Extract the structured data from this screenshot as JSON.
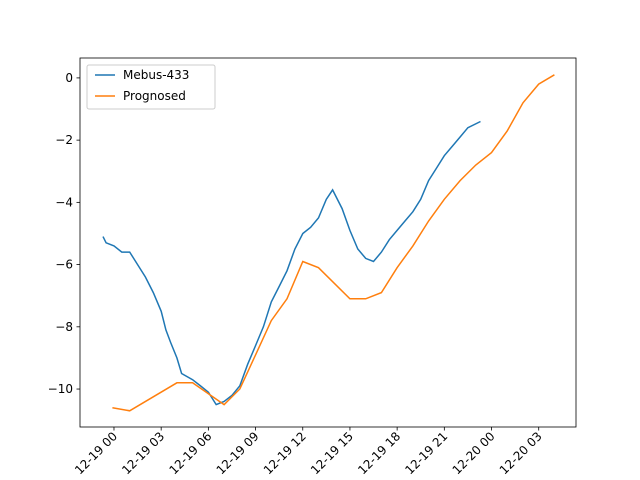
{
  "chart_data": {
    "type": "line",
    "series": [
      {
        "name": "Mebus-433",
        "color": "#1f77b4",
        "x": [
          -0.7,
          -0.5,
          0,
          0.5,
          1,
          1.5,
          2,
          2.5,
          3,
          3.3,
          3.6,
          4,
          4.3,
          5,
          5.5,
          6,
          6.5,
          7,
          7.5,
          8,
          8.5,
          9,
          9.5,
          10,
          10.5,
          11,
          11.5,
          12,
          12.5,
          13,
          13.5,
          13.9,
          14.5,
          15,
          15.5,
          16,
          16.5,
          17,
          17.5,
          18,
          18.5,
          19,
          19.5,
          20,
          20.5,
          21,
          21.5,
          22,
          22.5,
          23.3
        ],
        "values": [
          -5.1,
          -5.3,
          -5.4,
          -5.6,
          -5.6,
          -6.0,
          -6.4,
          -6.9,
          -7.5,
          -8.1,
          -8.5,
          -9.0,
          -9.5,
          -9.7,
          -9.9,
          -10.1,
          -10.5,
          -10.4,
          -10.2,
          -9.9,
          -9.2,
          -8.6,
          -8.0,
          -7.2,
          -6.7,
          -6.2,
          -5.5,
          -5.0,
          -4.8,
          -4.5,
          -3.9,
          -3.6,
          -4.2,
          -4.9,
          -5.5,
          -5.8,
          -5.9,
          -5.6,
          -5.2,
          -4.9,
          -4.6,
          -4.3,
          -3.9,
          -3.3,
          -2.9,
          -2.5,
          -2.2,
          -1.9,
          -1.6,
          -1.4
        ]
      },
      {
        "name": "Prognosed",
        "color": "#ff7f0e",
        "x": [
          -0.1,
          1,
          4,
          5,
          7,
          8,
          9,
          10,
          11,
          12,
          13,
          15,
          16,
          17,
          18,
          19,
          20,
          21,
          22,
          23,
          24,
          25,
          26,
          27,
          28
        ],
        "values": [
          -10.6,
          -10.7,
          -9.8,
          -9.8,
          -10.5,
          -10.0,
          -8.9,
          -7.8,
          -7.1,
          -5.9,
          -6.1,
          -7.1,
          -7.1,
          -6.9,
          -6.1,
          -5.4,
          -4.6,
          -3.9,
          -3.3,
          -2.8,
          -2.4,
          -1.7,
          -0.8,
          -0.2,
          0.1
        ]
      }
    ],
    "xlim": [
      -2.16,
      29.37
    ],
    "ylim": [
      -11.22,
      0.64
    ],
    "xticks": [
      {
        "value": 0,
        "label": "12-19 00"
      },
      {
        "value": 3,
        "label": "12-19 03"
      },
      {
        "value": 6,
        "label": "12-19 06"
      },
      {
        "value": 9,
        "label": "12-19 09"
      },
      {
        "value": 12,
        "label": "12-19 12"
      },
      {
        "value": 15,
        "label": "12-19 15"
      },
      {
        "value": 18,
        "label": "12-19 18"
      },
      {
        "value": 21,
        "label": "12-19 21"
      },
      {
        "value": 24,
        "label": "12-20 00"
      },
      {
        "value": 27,
        "label": "12-20 03"
      }
    ],
    "yticks": [
      {
        "value": -10,
        "label": "−10"
      },
      {
        "value": -8,
        "label": "−8"
      },
      {
        "value": -6,
        "label": "−6"
      },
      {
        "value": -4,
        "label": "−4"
      },
      {
        "value": -2,
        "label": "−2"
      },
      0
    ],
    "legend": "upper left"
  }
}
